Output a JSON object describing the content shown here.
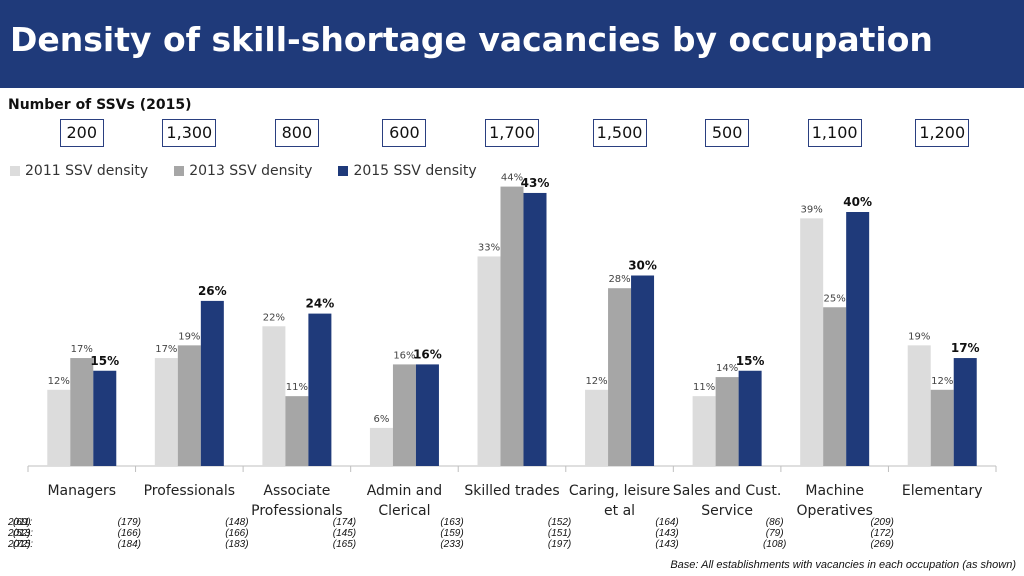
{
  "title": "Density of skill-shortage vacancies by occupation",
  "subtitle": "Number of SSVs (2015)",
  "ssv_counts": [
    "200",
    "1,300",
    "800",
    "600",
    "1,700",
    "1,500",
    "500",
    "1,100",
    "1,200"
  ],
  "base_note": "Base: All establishments with vacancies in each occupation (as shown)",
  "colors": {
    "header": "#1f3a7a",
    "s2011": "#dcdcdc",
    "s2013": "#a6a6a6",
    "s2015": "#1f3a7a"
  },
  "bases": {
    "row_labels": [
      "2011:",
      "2013:",
      "2015:"
    ],
    "values": [
      [
        "(69)",
        "(52)",
        "(72)"
      ],
      [
        "(179)",
        "(166)",
        "(184)"
      ],
      [
        "(148)",
        "(166)",
        "(183)"
      ],
      [
        "(174)",
        "(145)",
        "(165)"
      ],
      [
        "(163)",
        "(159)",
        "(233)"
      ],
      [
        "(152)",
        "(151)",
        "(197)"
      ],
      [
        "(164)",
        "(143)",
        "(143)"
      ],
      [
        "(86)",
        "(79)",
        "(108)"
      ],
      [
        "(209)",
        "(172)",
        "(269)"
      ]
    ]
  },
  "chart_data": {
    "type": "bar",
    "categories": [
      "Managers",
      "Professionals",
      "Associate Professionals",
      "Admin and Clerical",
      "Skilled trades",
      "Caring, leisure et al",
      "Sales and Cust. Service",
      "Machine Operatives",
      "Elementary"
    ],
    "category_lines": [
      [
        "Managers"
      ],
      [
        "Professionals"
      ],
      [
        "Associate",
        "Professionals"
      ],
      [
        "Admin and",
        "Clerical"
      ],
      [
        "Skilled trades"
      ],
      [
        "Caring, leisure",
        "et al"
      ],
      [
        "Sales and Cust.",
        "Service"
      ],
      [
        "Machine",
        "Operatives"
      ],
      [
        "Elementary"
      ]
    ],
    "series": [
      {
        "name": "2011 SSV density",
        "values": [
          12,
          17,
          22,
          6,
          33,
          12,
          11,
          39,
          19
        ]
      },
      {
        "name": "2013 SSV density",
        "values": [
          17,
          19,
          11,
          16,
          44,
          28,
          14,
          25,
          12
        ]
      },
      {
        "name": "2015 SSV density",
        "values": [
          15,
          26,
          24,
          16,
          43,
          30,
          15,
          40,
          17
        ]
      }
    ],
    "value_suffix": "%",
    "ylim": [
      0,
      44
    ],
    "legend_position": "top-left",
    "grid": false
  }
}
